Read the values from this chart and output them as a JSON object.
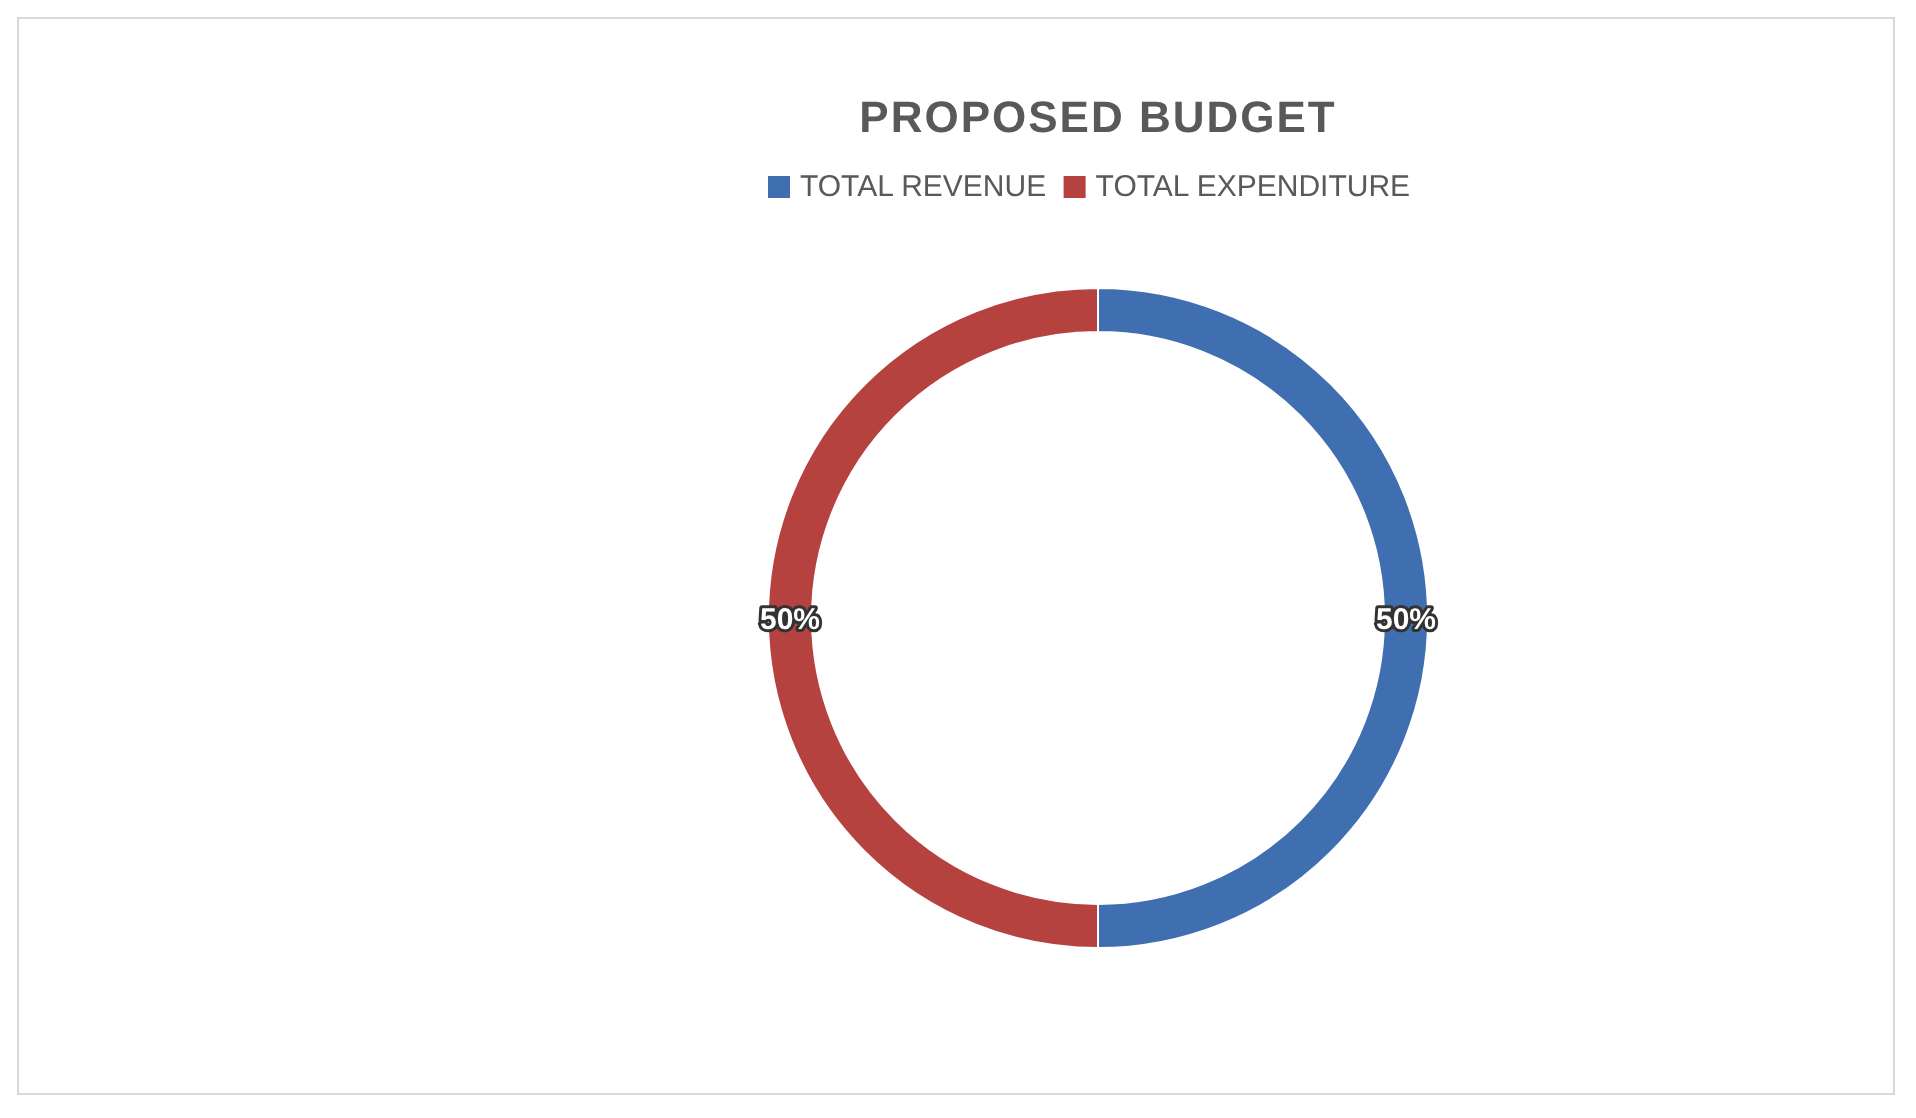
{
  "chart_data": {
    "type": "donut",
    "title": "PROPOSED BUDGET",
    "categories": [
      "TOTAL REVENUE",
      "TOTAL EXPENDITURE"
    ],
    "values": [
      50,
      50
    ],
    "colors": [
      "#3f6fb1",
      "#b5423f"
    ],
    "value_labels": [
      "50%",
      "50%"
    ],
    "legend": "top"
  }
}
